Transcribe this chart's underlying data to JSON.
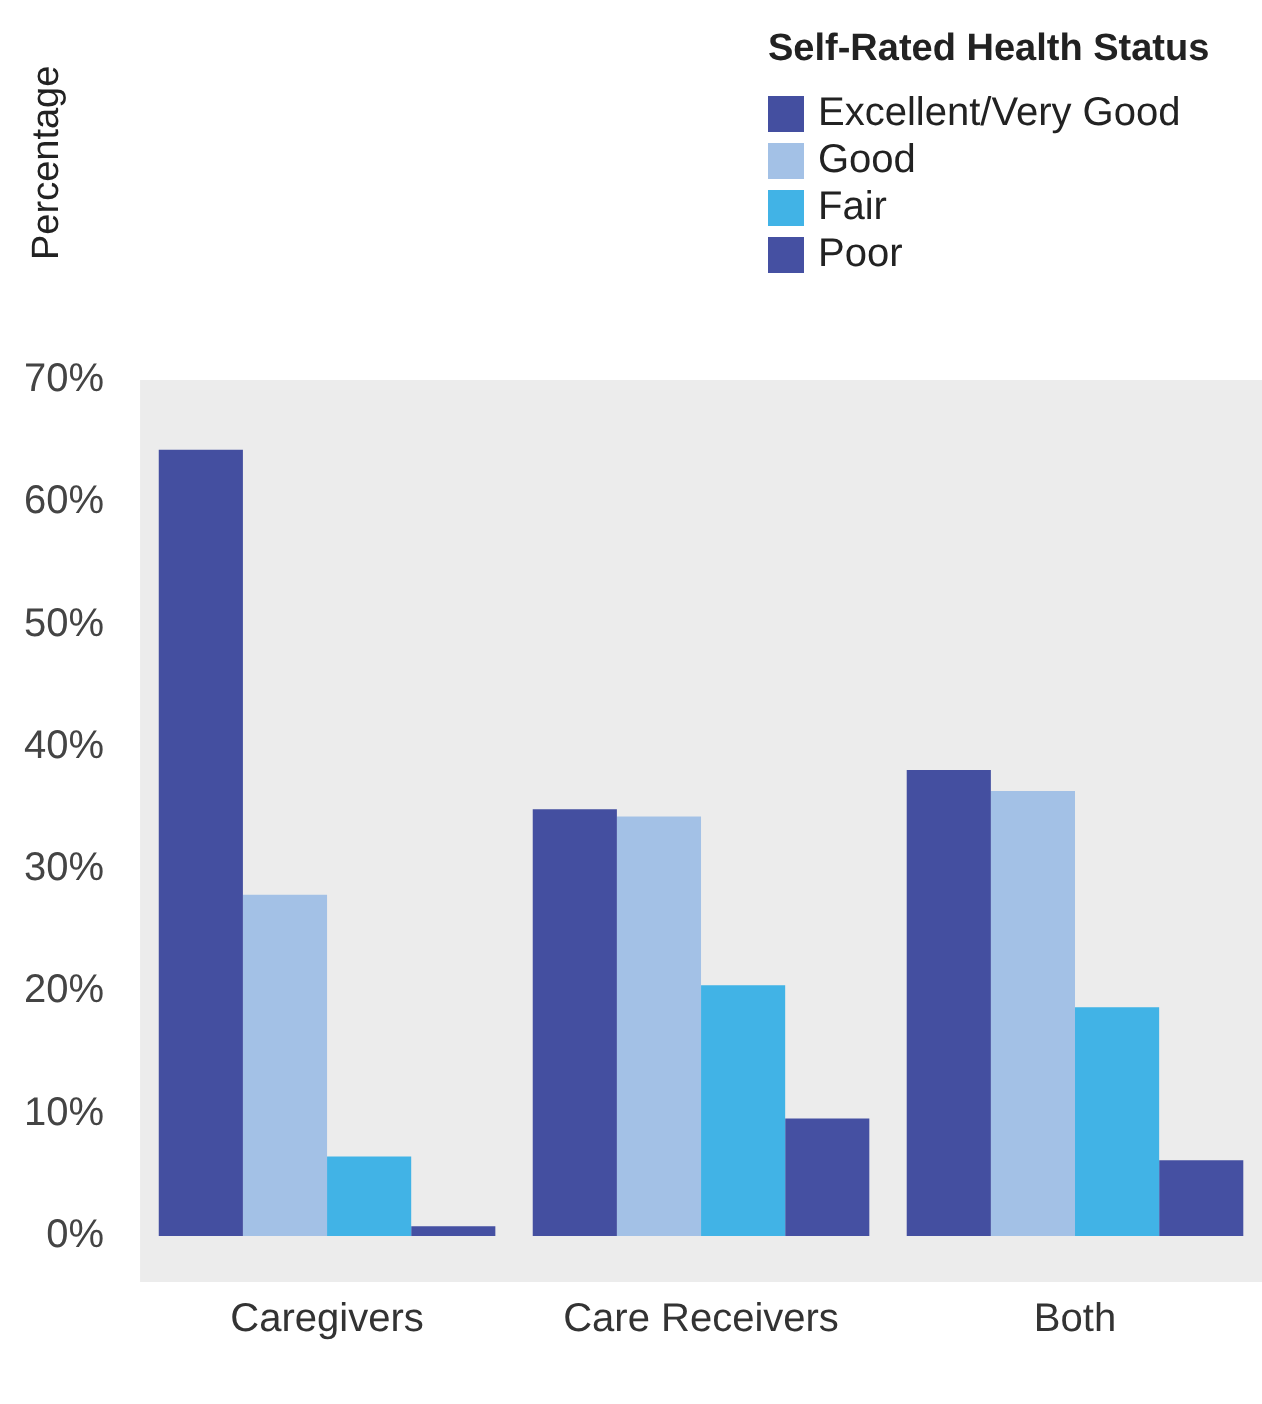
{
  "chart_data": {
    "type": "bar",
    "ylabel": "Percentage",
    "legend_title": "Self-Rated Health Status",
    "categories": [
      "Caregivers",
      "Care Receivers",
      "Both"
    ],
    "series": [
      {
        "name": "Excellent/Very Good",
        "color": "#444fa0",
        "values": [
          64.3,
          34.9,
          38.1
        ]
      },
      {
        "name": "Good",
        "color": "#a3c1e6",
        "values": [
          27.9,
          34.3,
          36.4
        ]
      },
      {
        "name": "Fair",
        "color": "#41b3e6",
        "values": [
          6.5,
          20.5,
          18.7
        ]
      },
      {
        "name": "Poor",
        "color": "#4550a2",
        "values": [
          0.8,
          9.6,
          6.2
        ]
      }
    ],
    "ylim": [
      0,
      70
    ],
    "yticks": [
      {
        "value": 0,
        "label": "0%"
      },
      {
        "value": 10,
        "label": "10%"
      },
      {
        "value": 20,
        "label": "20%"
      },
      {
        "value": 30,
        "label": "30%"
      },
      {
        "value": 40,
        "label": "40%"
      },
      {
        "value": 50,
        "label": "50%"
      },
      {
        "value": 60,
        "label": "60%"
      },
      {
        "value": 70,
        "label": "70%"
      }
    ],
    "grid": false,
    "legend": "top right"
  }
}
